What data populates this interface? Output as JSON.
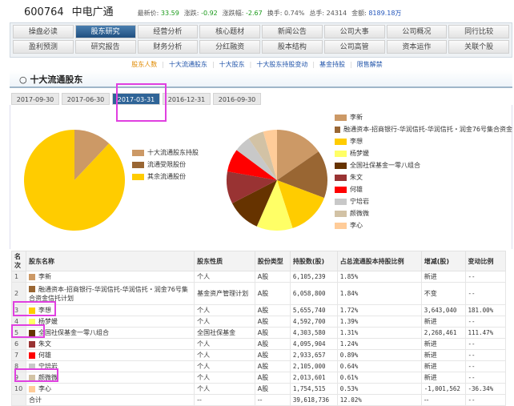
{
  "header": {
    "code": "600764",
    "name": "中电广通",
    "quotes": [
      {
        "label": "最新价:",
        "value": "33.59",
        "color": "#1a9a1a"
      },
      {
        "label": "涨跌:",
        "value": "-0.92",
        "color": "#1a9a1a"
      },
      {
        "label": "涨跌幅:",
        "value": "-2.67",
        "color": "#1a9a1a"
      },
      {
        "label": "换手:",
        "value": "0.74%",
        "color": "#555555"
      },
      {
        "label": "总手:",
        "value": "24314",
        "color": "#555555"
      },
      {
        "label": "金额:",
        "value": "8189.18万",
        "color": "#2255bb"
      }
    ]
  },
  "nav": {
    "row1": [
      "操盘必读",
      "股东研究",
      "经营分析",
      "核心题材",
      "新闻公告",
      "公司大事",
      "公司概况",
      "同行比较"
    ],
    "row2": [
      "盈利预测",
      "研究报告",
      "财务分析",
      "分红融资",
      "股本结构",
      "公司高管",
      "资本运作",
      "关联个股"
    ],
    "active": "股东研究"
  },
  "sublinks": [
    "股东人数",
    "十大流通股东",
    "十大股东",
    "十大股东持股变动",
    "基金持股",
    "限售解禁"
  ],
  "section_title": "十大流通股东",
  "date_tabs": [
    "2017-09-30",
    "2017-06-30",
    "2017-03-31",
    "2016-12-31",
    "2016-09-30"
  ],
  "active_tab": "2017-03-31",
  "pie1": {
    "slices": [
      {
        "label": "十大流通股东持股",
        "value": 12.02,
        "color": "#cc9966"
      },
      {
        "label": "流通受限股份",
        "value": 0,
        "color": "#996633"
      },
      {
        "label": "其余流通股份",
        "value": 87.98,
        "color": "#ffcc00"
      }
    ]
  },
  "pie2_colors": [
    "#cc9966",
    "#996633",
    "#ffcc00",
    "#ffff66",
    "#663300",
    "#993333",
    "#ff0000",
    "#c8c8c8",
    "#d2c2a5",
    "#ffcc99"
  ],
  "table": {
    "headers": [
      "名次",
      "股东名称",
      "股东性质",
      "股份类型",
      "持股数(股)",
      "占总流通股本持股比例",
      "增减(股)",
      "变动比例"
    ],
    "rows": [
      [
        "1",
        "李新",
        "个人",
        "A股",
        "6,105,239",
        "1.85%",
        "新进",
        "--"
      ],
      [
        "2",
        "融通资本-招商银行-华润信托-华润信托・润金76号集合资金信托计划",
        "基金资产管理计划",
        "A股",
        "6,058,800",
        "1.84%",
        "不变",
        "--"
      ],
      [
        "3",
        "李想",
        "个人",
        "A股",
        "5,655,740",
        "1.72%",
        "3,643,040",
        "181.00%"
      ],
      [
        "4",
        "杨梦媛",
        "个人",
        "A股",
        "4,592,700",
        "1.39%",
        "新进",
        "--"
      ],
      [
        "5",
        "全国社保基金一零八组合",
        "全国社保基金",
        "A股",
        "4,303,580",
        "1.31%",
        "2,268,461",
        "111.47%"
      ],
      [
        "6",
        "朱文",
        "个人",
        "A股",
        "4,095,904",
        "1.24%",
        "新进",
        "--"
      ],
      [
        "7",
        "何雄",
        "个人",
        "A股",
        "2,933,657",
        "0.89%",
        "新进",
        "--"
      ],
      [
        "8",
        "宁培岩",
        "个人",
        "A股",
        "2,105,000",
        "0.64%",
        "新进",
        "--"
      ],
      [
        "9",
        "颜微微",
        "个人",
        "A股",
        "2,013,601",
        "0.61%",
        "新进",
        "--"
      ],
      [
        "10",
        "李心",
        "个人",
        "A股",
        "1,754,515",
        "0.53%",
        "-1,001,562",
        "-36.34%"
      ]
    ],
    "total": [
      "",
      "合计",
      "--",
      "--",
      "39,618,736",
      "12.02%",
      "--",
      "--"
    ]
  },
  "pie2_values": [
    6105239,
    6058800,
    5655740,
    4592700,
    4303580,
    4095904,
    2933657,
    2105000,
    2013601,
    1754515
  ],
  "legend2_names": [
    "李新",
    "融通资本-招商银行-华润信托-华润信托・润金76号集合资金",
    "李想",
    "杨梦媛",
    "全国社保基金一零八组合",
    "朱文",
    "何雄",
    "宁培岩",
    "颜微微",
    "李心"
  ]
}
